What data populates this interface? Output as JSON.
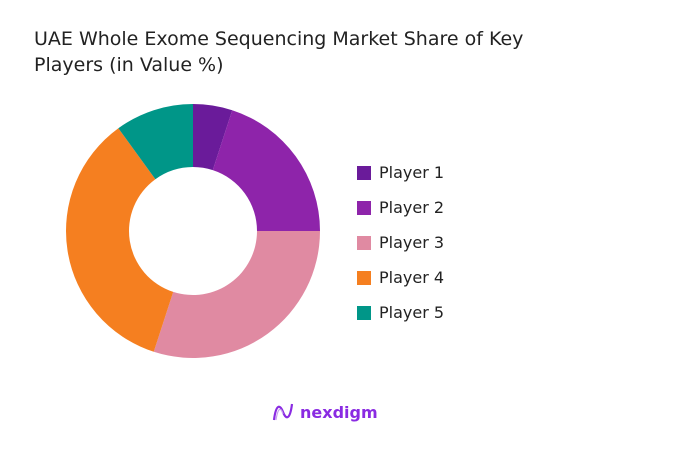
{
  "chart_data": {
    "type": "pie",
    "donut": true,
    "title": "UAE Whole Exome Sequencing Market Share of Key Players (in Value %)",
    "categories": [
      "Player 1",
      "Player 2",
      "Player 3",
      "Player 4",
      "Player 5"
    ],
    "values": [
      5,
      20,
      30,
      35,
      10
    ],
    "colors": [
      "#6a1b9a",
      "#8e24aa",
      "#e08aa2",
      "#f57f20",
      "#009688"
    ],
    "legend_position": "right"
  },
  "brand": {
    "name": "nexdigm"
  }
}
